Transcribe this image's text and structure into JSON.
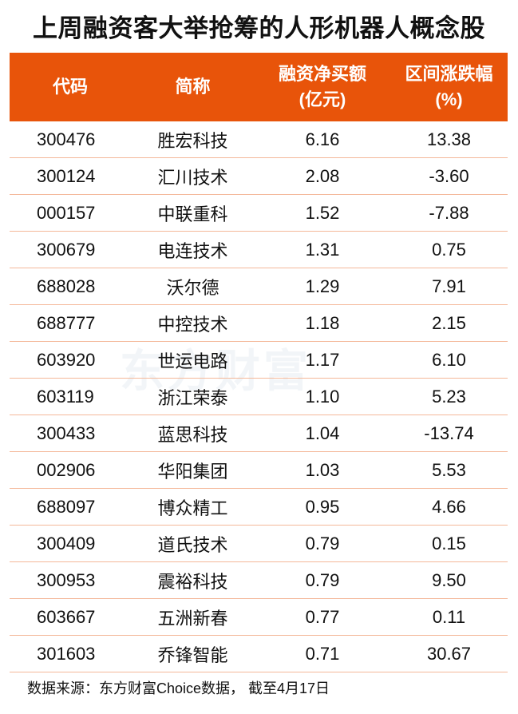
{
  "title": "上周融资客大举抢筹的人形机器人概念股",
  "watermark": "东方财富",
  "colors": {
    "header_bg": "#e8540a",
    "row_divider": "#f4b89a"
  },
  "table": {
    "headers": [
      {
        "line1": "代码",
        "line2": ""
      },
      {
        "line1": "简称",
        "line2": ""
      },
      {
        "line1": "融资净买额",
        "line2": "(亿元)"
      },
      {
        "line1": "区间涨跌幅",
        "line2": "(%)"
      }
    ],
    "rows": [
      [
        "300476",
        "胜宏科技",
        "6.16",
        "13.38"
      ],
      [
        "300124",
        "汇川技术",
        "2.08",
        "-3.60"
      ],
      [
        "000157",
        "中联重科",
        "1.52",
        "-7.88"
      ],
      [
        "300679",
        "电连技术",
        "1.31",
        "0.75"
      ],
      [
        "688028",
        "沃尔德",
        "1.29",
        "7.91"
      ],
      [
        "688777",
        "中控技术",
        "1.18",
        "2.15"
      ],
      [
        "603920",
        "世运电路",
        "1.17",
        "6.10"
      ],
      [
        "603119",
        "浙江荣泰",
        "1.10",
        "5.23"
      ],
      [
        "300433",
        "蓝思科技",
        "1.04",
        "-13.74"
      ],
      [
        "002906",
        "华阳集团",
        "1.03",
        "5.53"
      ],
      [
        "688097",
        "博众精工",
        "0.95",
        "4.66"
      ],
      [
        "300409",
        "道氏技术",
        "0.79",
        "0.15"
      ],
      [
        "300953",
        "震裕科技",
        "0.79",
        "9.50"
      ],
      [
        "603667",
        "五洲新春",
        "0.77",
        "0.11"
      ],
      [
        "301603",
        "乔锋智能",
        "0.71",
        "30.67"
      ]
    ]
  },
  "footer": "数据来源：东方财富Choice数据，  截至4月17日"
}
